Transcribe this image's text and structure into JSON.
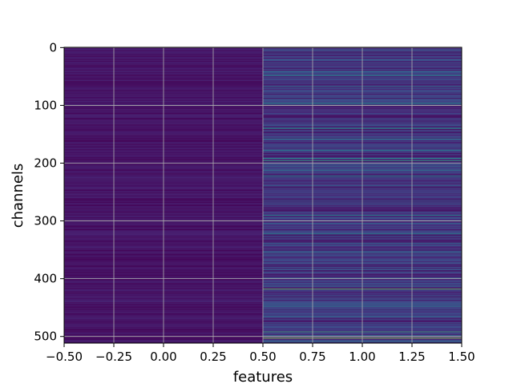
{
  "chart_data": {
    "type": "heatmap",
    "title": "",
    "xlabel": "features",
    "ylabel": "channels",
    "xlim": [
      -0.5,
      1.5
    ],
    "ylim": [
      511.5,
      -0.5
    ],
    "x_ticks": [
      -0.5,
      -0.25,
      0.0,
      0.25,
      0.5,
      0.75,
      1.0,
      1.25,
      1.5
    ],
    "x_tick_labels": [
      "−0.50",
      "−0.25",
      "0.00",
      "0.25",
      "0.50",
      "0.75",
      "1.00",
      "1.25",
      "1.50"
    ],
    "y_ticks": [
      0,
      100,
      200,
      300,
      400,
      500
    ],
    "y_tick_labels": [
      "0",
      "100",
      "200",
      "300",
      "400",
      "500"
    ],
    "grid": true,
    "colormap": "viridis",
    "columns": [
      0,
      1
    ],
    "rows": 512,
    "value_range": [
      0,
      1
    ],
    "column_summary": [
      {
        "column": 0,
        "description_level": 0.05
      },
      {
        "column": 1,
        "description_level": 0.2
      }
    ],
    "bright_rows_column_1": [
      {
        "row": 8,
        "value": 0.02
      },
      {
        "row": 48,
        "value": 0.5
      },
      {
        "row": 88,
        "value": 0.02
      },
      {
        "row": 96,
        "value": 0.45
      },
      {
        "row": 140,
        "value": 0.5
      },
      {
        "row": 158,
        "value": 0.45
      },
      {
        "row": 178,
        "value": 0.4
      },
      {
        "row": 192,
        "value": 0.55
      },
      {
        "row": 196,
        "value": 0.6
      },
      {
        "row": 212,
        "value": 0.45
      },
      {
        "row": 222,
        "value": 0.45
      },
      {
        "row": 264,
        "value": 0.02
      },
      {
        "row": 290,
        "value": 0.5
      },
      {
        "row": 322,
        "value": 0.45
      },
      {
        "row": 418,
        "value": 0.75
      },
      {
        "row": 448,
        "value": 0.4
      },
      {
        "row": 492,
        "value": 0.65
      },
      {
        "row": 498,
        "value": 0.45
      },
      {
        "row": 503,
        "value": 0.85
      }
    ]
  }
}
